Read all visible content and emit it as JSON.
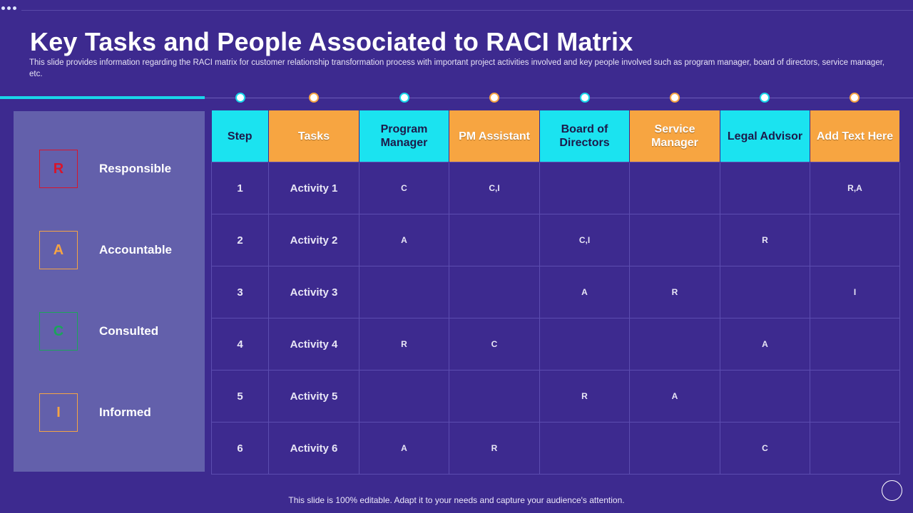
{
  "title": "Key Tasks and People Associated to RACI Matrix",
  "subtitle": "This slide provides information regarding the RACI  matrix for customer  relationship transformation process with important project activities involved and key people involved such as program manager, board of directors, service manager, etc.",
  "legend": [
    {
      "letter": "R",
      "label": "Responsible",
      "color": "#d8152b"
    },
    {
      "letter": "A",
      "label": "Accountable",
      "color": "#f5a444"
    },
    {
      "letter": "C",
      "label": "Consulted",
      "color": "#1aa55a"
    },
    {
      "letter": "I",
      "label": "Informed",
      "color": "#f5a444"
    }
  ],
  "table": {
    "headers": [
      "Step",
      "Tasks",
      "Program Manager",
      "PM Assistant",
      "Board of Directors",
      "Service Manager",
      "Legal Advisor",
      "Add Text Here"
    ],
    "header_colors": [
      "cyan",
      "orange",
      "cyan",
      "orange",
      "cyan",
      "orange",
      "cyan",
      "orange"
    ],
    "rows": [
      {
        "step": "1",
        "task": "Activity 1",
        "cells": [
          "C",
          "C,I",
          "",
          "",
          "",
          "R,A"
        ]
      },
      {
        "step": "2",
        "task": "Activity 2",
        "cells": [
          "A",
          "",
          "C,I",
          "",
          "R",
          ""
        ]
      },
      {
        "step": "3",
        "task": "Activity 3",
        "cells": [
          "",
          "",
          "A",
          "R",
          "",
          "I"
        ]
      },
      {
        "step": "4",
        "task": "Activity 4",
        "cells": [
          "R",
          "C",
          "",
          "",
          "A",
          ""
        ]
      },
      {
        "step": "5",
        "task": "Activity 5",
        "cells": [
          "",
          "",
          "R",
          "A",
          "",
          ""
        ]
      },
      {
        "step": "6",
        "task": "Activity 6",
        "cells": [
          "A",
          "R",
          "",
          "",
          "C",
          ""
        ]
      }
    ]
  },
  "footer": "This slide is 100% editable. Adapt it to your needs and capture your audience's attention.",
  "colors": {
    "background": "#3d2a8f",
    "panel": "#6360ab",
    "cyan_accent": "#1be3f0",
    "orange_accent": "#f7a541"
  }
}
